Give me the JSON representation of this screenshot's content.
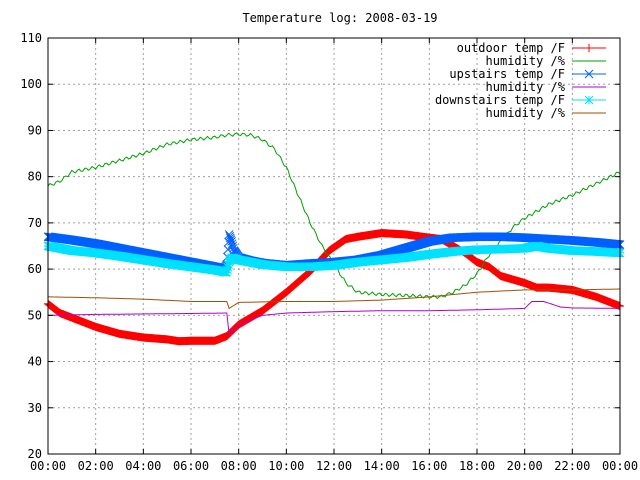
{
  "chart_data": {
    "type": "line",
    "title": "Temperature log: 2008-03-19",
    "xlabel": "",
    "ylabel": "",
    "xlim": [
      0,
      24
    ],
    "ylim": [
      20,
      110
    ],
    "grid": true,
    "legend_position": "top-right",
    "x_ticks": [
      {
        "value": 0,
        "label": "00:00"
      },
      {
        "value": 2,
        "label": "02:00"
      },
      {
        "value": 4,
        "label": "04:00"
      },
      {
        "value": 6,
        "label": "06:00"
      },
      {
        "value": 8,
        "label": "08:00"
      },
      {
        "value": 10,
        "label": "10:00"
      },
      {
        "value": 12,
        "label": "12:00"
      },
      {
        "value": 14,
        "label": "14:00"
      },
      {
        "value": 16,
        "label": "16:00"
      },
      {
        "value": 18,
        "label": "18:00"
      },
      {
        "value": 20,
        "label": "20:00"
      },
      {
        "value": 22,
        "label": "22:00"
      },
      {
        "value": 24,
        "label": "00:00"
      }
    ],
    "y_ticks": [
      {
        "value": 20,
        "label": "20"
      },
      {
        "value": 30,
        "label": "30"
      },
      {
        "value": 40,
        "label": "40"
      },
      {
        "value": 50,
        "label": "50"
      },
      {
        "value": 60,
        "label": "60"
      },
      {
        "value": 70,
        "label": "70"
      },
      {
        "value": 80,
        "label": "80"
      },
      {
        "value": 90,
        "label": "90"
      },
      {
        "value": 100,
        "label": "100"
      },
      {
        "value": 110,
        "label": "110"
      }
    ],
    "series": [
      {
        "name": "outdoor temp /F",
        "color": "#ff0000",
        "style": "points",
        "marker": "plus",
        "x": [
          0,
          0.5,
          1,
          2,
          3,
          4,
          5,
          5.5,
          6,
          7,
          7.5,
          8,
          9,
          10,
          11,
          11.8,
          12.5,
          13,
          14,
          15,
          16,
          16.5,
          17,
          17.5,
          18,
          18.5,
          19,
          20,
          20.5,
          21,
          22,
          23,
          24
        ],
        "y": [
          52.5,
          50.5,
          49.5,
          47.5,
          46,
          45.2,
          44.8,
          44.4,
          44.5,
          44.5,
          45.5,
          48,
          51,
          55,
          59.5,
          64,
          66.5,
          67,
          67.8,
          67.5,
          66.8,
          66.5,
          65,
          63.5,
          61.5,
          60.5,
          58.5,
          57,
          56,
          56,
          55.5,
          54,
          52
        ]
      },
      {
        "name": "humidity /%",
        "color": "#00a000",
        "style": "line",
        "x": [
          0,
          0.5,
          1,
          2,
          3,
          4,
          5,
          6,
          7,
          7.5,
          8,
          8.5,
          9,
          9.5,
          10,
          11,
          11.5,
          12,
          12.5,
          13,
          14,
          15,
          16,
          16.5,
          17,
          17.5,
          18,
          18.5,
          19,
          19.5,
          20,
          21,
          22,
          23,
          24
        ],
        "y": [
          78,
          79,
          81,
          82,
          83.5,
          85,
          87,
          88,
          88.5,
          89,
          89.2,
          89,
          88,
          86,
          82,
          70,
          65,
          61,
          57,
          55,
          54.5,
          54.3,
          54,
          54,
          55,
          56.5,
          59,
          63,
          66,
          69,
          71,
          74,
          76,
          78.5,
          81
        ]
      },
      {
        "name": "upstairs temp /F",
        "color": "#0060ff",
        "style": "points",
        "marker": "cross",
        "x": [
          0,
          1,
          2,
          3,
          4,
          5,
          6,
          7,
          7.4,
          7.5,
          7.6,
          7.7,
          7.8,
          8,
          8.5,
          9,
          10,
          11,
          12,
          13,
          14,
          15,
          16,
          17,
          18,
          19,
          20,
          21,
          22,
          23,
          24
        ],
        "y": [
          67,
          66.3,
          65.5,
          64.5,
          63.5,
          62.5,
          61.5,
          60.5,
          60,
          61,
          67.5,
          66,
          64,
          62.5,
          61.8,
          61.3,
          60.8,
          61.2,
          61.5,
          62,
          63,
          64.5,
          66,
          66.8,
          67,
          67,
          66.8,
          66.5,
          66.2,
          65.8,
          65.3
        ]
      },
      {
        "name": "humidity /%",
        "color": "#b000d0",
        "style": "line",
        "x": [
          0,
          2,
          4,
          6,
          7.5,
          7.6,
          8,
          9,
          10,
          12,
          14,
          16,
          18,
          20,
          20.3,
          20.8,
          21.5,
          22,
          24
        ],
        "y": [
          50,
          50.2,
          50.3,
          50.4,
          50.5,
          46,
          48,
          50,
          50.5,
          50.8,
          51,
          51,
          51.2,
          51.5,
          53,
          53,
          51.8,
          51.6,
          51.5
        ]
      },
      {
        "name": "downstairs temp /F",
        "color": "#00e0ff",
        "style": "points",
        "marker": "star",
        "x": [
          0,
          1,
          2,
          3,
          4,
          5,
          6,
          7,
          7.5,
          7.6,
          7.7,
          8,
          9,
          10,
          11,
          12,
          13,
          14,
          15,
          16,
          17,
          18,
          19,
          20,
          20.5,
          21,
          22,
          23,
          24
        ],
        "y": [
          65,
          64,
          63.5,
          62.8,
          62,
          61.2,
          60.5,
          59.8,
          59.3,
          61.5,
          62.5,
          62,
          61,
          60.5,
          60.5,
          60.8,
          61.5,
          62,
          62.5,
          63.2,
          63.8,
          64.2,
          64.3,
          64.5,
          65,
          64.5,
          64,
          63.8,
          63.5
        ]
      },
      {
        "name": "humidity /%",
        "color": "#a05000",
        "style": "line",
        "x": [
          0,
          2,
          4,
          6,
          7.5,
          7.6,
          8,
          10,
          12,
          14,
          16,
          18,
          20,
          22,
          24
        ],
        "y": [
          54,
          53.8,
          53.5,
          53,
          53,
          51.5,
          52.8,
          53,
          53,
          53.3,
          54,
          55,
          55.5,
          55.5,
          55.7
        ]
      }
    ]
  }
}
